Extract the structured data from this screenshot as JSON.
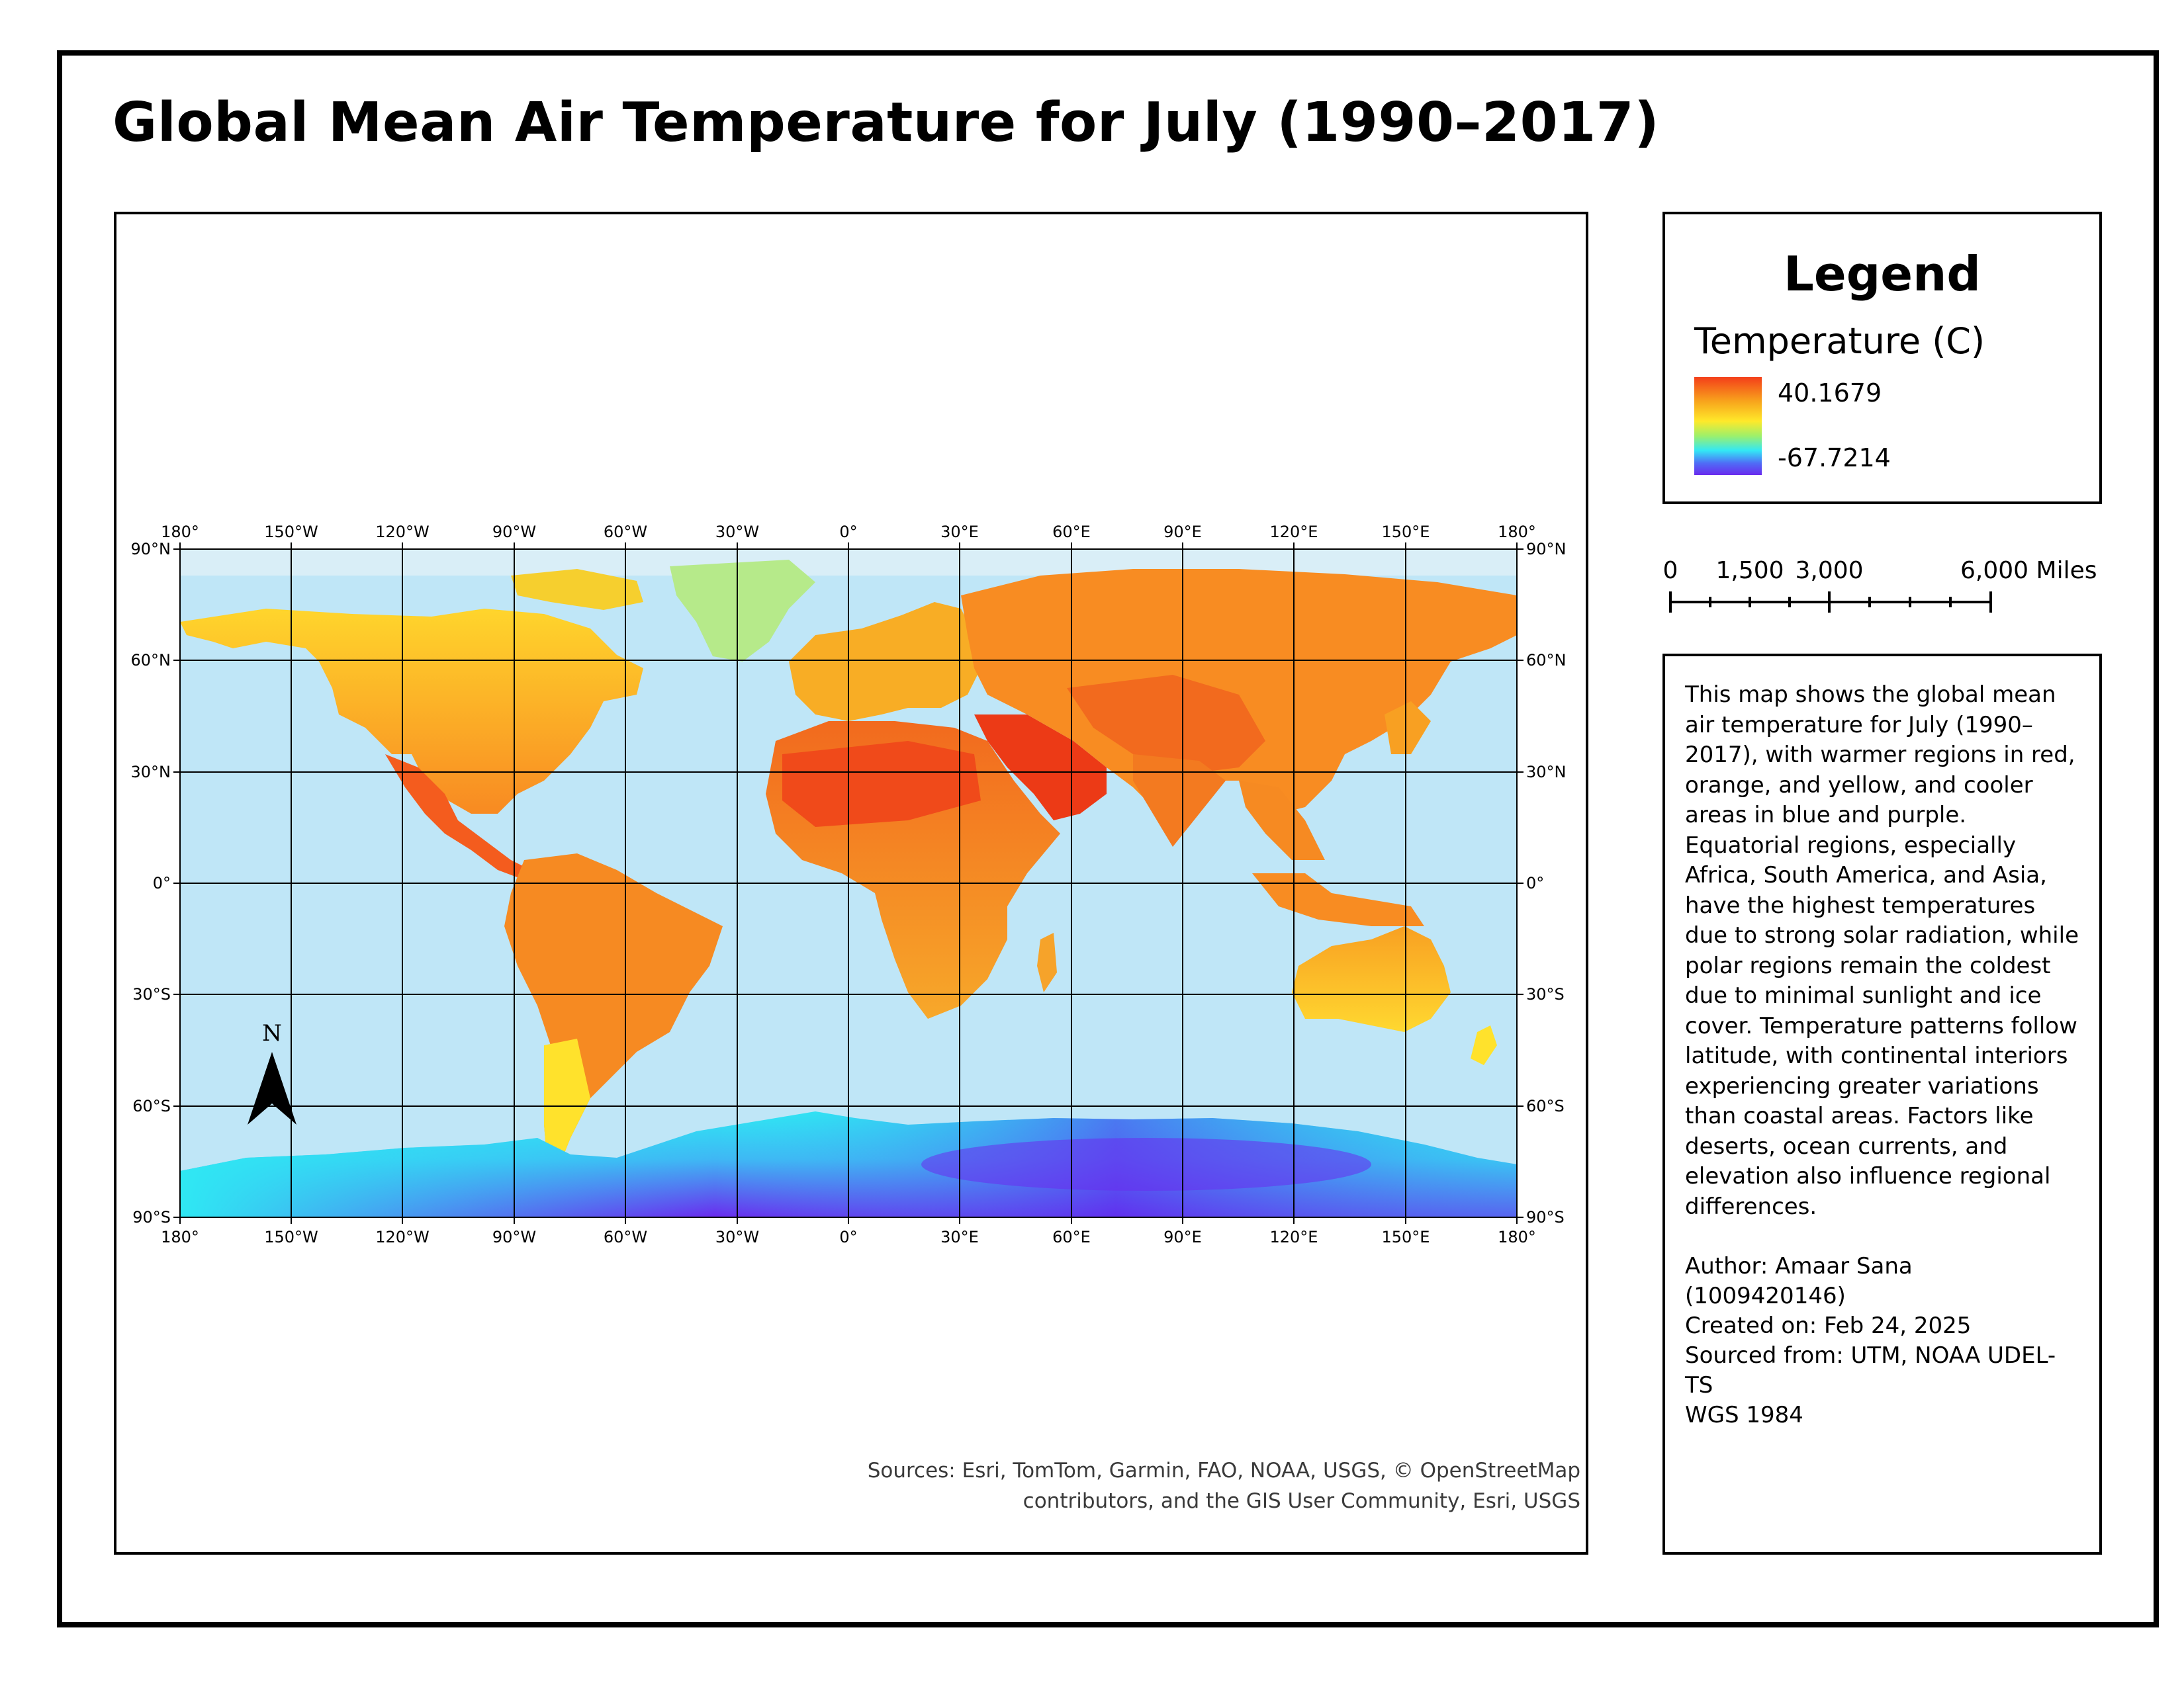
{
  "title": "Global Mean Air Temperature for July (1990–2017)",
  "map": {
    "lon_labels_top": [
      "180°",
      "150°W",
      "120°W",
      "90°W",
      "60°W",
      "30°W",
      "0°",
      "30°E",
      "60°E",
      "90°E",
      "120°E",
      "150°E",
      "180°"
    ],
    "lon_labels_bottom": [
      "180°",
      "150°W",
      "120°W",
      "90°W",
      "60°W",
      "30°W",
      "0°",
      "30°E",
      "60°E",
      "90°E",
      "120°E",
      "150°E",
      "180°"
    ],
    "lat_labels": [
      "90°N",
      "60°N",
      "30°N",
      "0°",
      "30°S",
      "60°S",
      "90°S"
    ],
    "north_arrow_label": "N",
    "sources_line1": "Sources: Esri, TomTom, Garmin, FAO, NOAA, USGS, © OpenStreetMap",
    "sources_line2": "contributors, and the GIS User Community, Esri, USGS"
  },
  "legend": {
    "title": "Legend",
    "subtitle": "Temperature (C)",
    "max_label": "40.1679",
    "min_label": "-67.7214"
  },
  "scalebar": {
    "labels": [
      "0",
      "1,500",
      "3,000",
      "6,000 Miles"
    ]
  },
  "description": {
    "paragraph": "This map shows the global mean air temperature for July (1990–2017), with warmer regions in red, orange, and yellow, and cooler areas in blue and purple. Equatorial regions, especially Africa, South America, and Asia, have the highest temperatures due to strong solar radiation, while polar regions remain the coldest due to minimal sunlight and ice cover. Temperature patterns follow latitude, with continental interiors experiencing greater variations than coastal areas. Factors like deserts, ocean currents, and elevation also influence regional differences.",
    "author": "Author: Amaar Sana (1009420146)",
    "created": "Created on: Feb 24, 2025",
    "sourced": "Sourced from: UTM, NOAA UDEL-TS",
    "datum": "WGS 1984"
  },
  "colors": {
    "ocean": "#bfe6f7",
    "hot": "#f44a1c",
    "warm": "#f89a22",
    "mild": "#ffe22c",
    "cold": "#33e6f2",
    "coldest": "#6a2bee"
  }
}
